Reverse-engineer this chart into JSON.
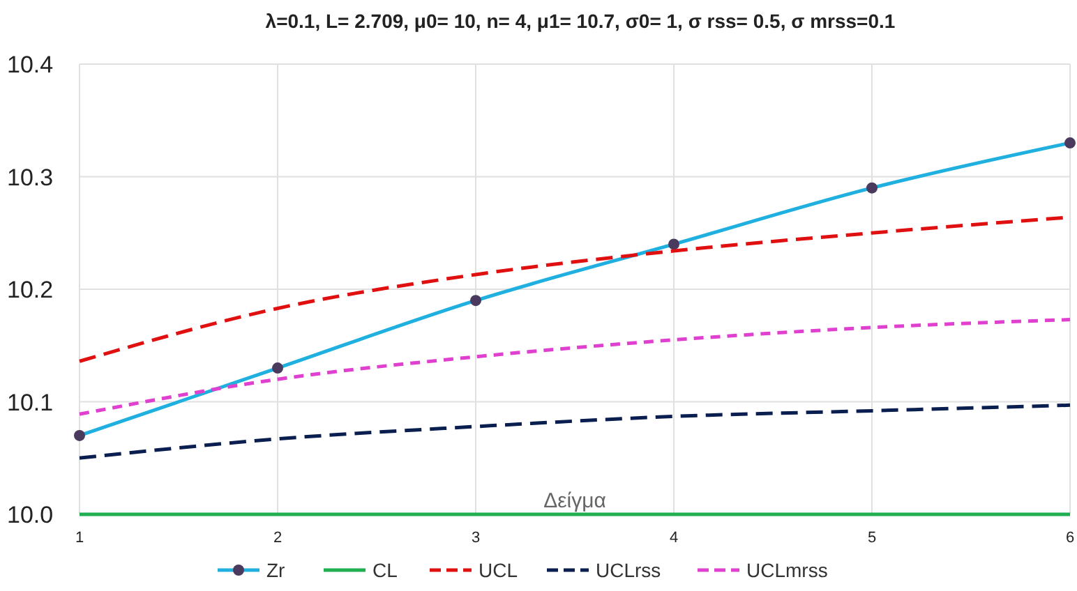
{
  "chart_data": {
    "type": "line",
    "title": "λ=0.1, L= 2.709, μ0= 10, n= 4, μ1= 10.7, σ0= 1, σ rss= 0.5, σ mrss=0.1",
    "xlabel": "Δείγμα",
    "x": [
      1,
      2,
      3,
      4,
      5,
      6
    ],
    "xlim": [
      1,
      6
    ],
    "xticks": [
      1,
      2,
      3,
      4,
      5,
      6
    ],
    "ylim": [
      10.0,
      10.4
    ],
    "yticks": [
      {
        "value": 10.0,
        "label": "10.0"
      },
      {
        "value": 10.1,
        "label": "10.1"
      },
      {
        "value": 10.2,
        "label": "10.2"
      },
      {
        "value": 10.3,
        "label": "10.3"
      },
      {
        "value": 10.4,
        "label": "10.4"
      }
    ],
    "grid": true,
    "legend": "bottom",
    "series": [
      {
        "name": "Zr",
        "color": "#1fb0e0",
        "values": [
          10.07,
          10.13,
          10.19,
          10.24,
          10.29,
          10.33
        ],
        "marker": "circle",
        "line_style": "solid"
      },
      {
        "name": "CL",
        "color": "#1fae50",
        "values": [
          10.0,
          10.0,
          10.0,
          10.0,
          10.0,
          10.0
        ],
        "marker": "none",
        "line_style": "solid"
      },
      {
        "name": "UCL",
        "color": "#e01010",
        "values": [
          10.136,
          10.183,
          10.213,
          10.234,
          10.25,
          10.264
        ],
        "marker": "none",
        "line_style": "dashed"
      },
      {
        "name": "UCLrss",
        "color": "#0a1f50",
        "values": [
          10.05,
          10.067,
          10.078,
          10.087,
          10.092,
          10.097
        ],
        "marker": "none",
        "line_style": "dashed"
      },
      {
        "name": "UCLmrss",
        "color": "#e040d0",
        "values": [
          10.089,
          10.12,
          10.14,
          10.155,
          10.166,
          10.173
        ],
        "marker": "none",
        "line_style": "dotted"
      }
    ]
  }
}
